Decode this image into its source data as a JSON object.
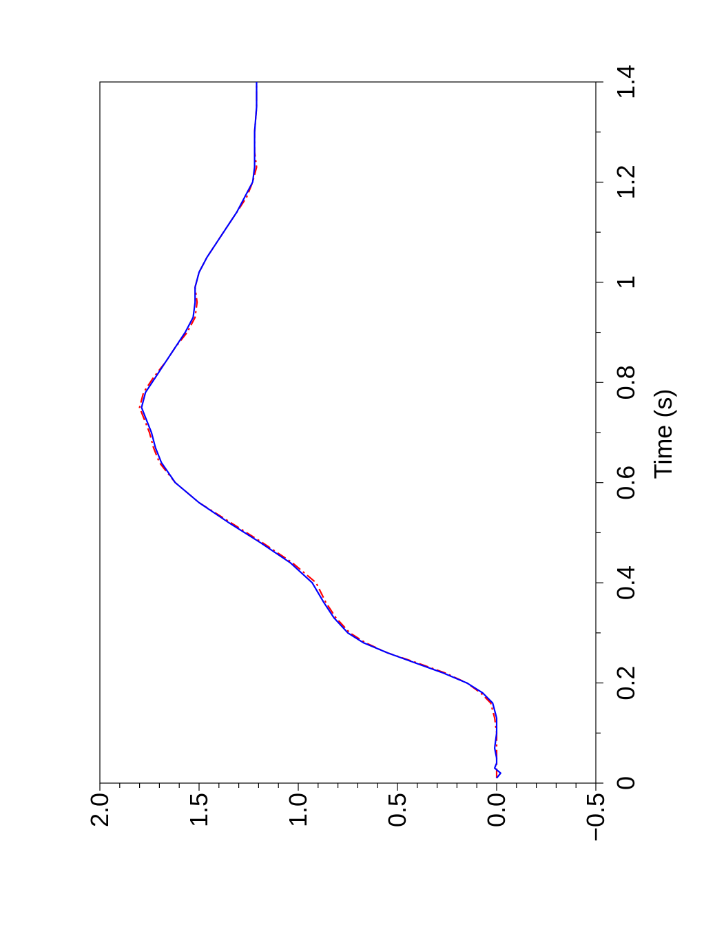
{
  "chart_data": {
    "type": "line",
    "orientation": "rotated-90-ccw",
    "title": "",
    "xlabel": "Time (s)",
    "ylabel": "",
    "xlim": [
      0,
      1.4
    ],
    "ylim": [
      -0.5,
      2.0
    ],
    "x_ticks": [
      0,
      0.2,
      0.4,
      0.6,
      0.8,
      1,
      1.2,
      1.4
    ],
    "x_tick_labels": [
      "0",
      "0.2",
      "0.4",
      "0.6",
      "0.8",
      "1",
      "1.2",
      "1.4"
    ],
    "y_ticks": [
      -0.5,
      0,
      0.5,
      1,
      1.5,
      2
    ],
    "y_tick_labels": [
      "−0.5",
      "0.0",
      "0.5",
      "1.0",
      "1.5",
      "2.0"
    ],
    "grid": false,
    "legend": "none",
    "series": [
      {
        "color": "#ff0000",
        "style": "dashed",
        "x": [
          0.01,
          0.05,
          0.1,
          0.13,
          0.16,
          0.18,
          0.2,
          0.22,
          0.24,
          0.26,
          0.28,
          0.3,
          0.33,
          0.36,
          0.4,
          0.44,
          0.48,
          0.52,
          0.56,
          0.6,
          0.64,
          0.67,
          0.7,
          0.73,
          0.75,
          0.78,
          0.81,
          0.84,
          0.87,
          0.9,
          0.93,
          0.96,
          0.99,
          1.02,
          1.05,
          1.08,
          1.11,
          1.14,
          1.17,
          1.2,
          1.23,
          1.26,
          1.3,
          1.35,
          1.4
        ],
        "y": [
          0.0,
          0.0,
          0.0,
          0.01,
          0.03,
          0.08,
          0.15,
          0.26,
          0.4,
          0.55,
          0.66,
          0.74,
          0.81,
          0.86,
          0.91,
          1.03,
          1.18,
          1.34,
          1.5,
          1.62,
          1.7,
          1.73,
          1.75,
          1.78,
          1.8,
          1.78,
          1.73,
          1.67,
          1.62,
          1.56,
          1.52,
          1.51,
          1.52,
          1.5,
          1.46,
          1.41,
          1.36,
          1.31,
          1.26,
          1.23,
          1.21,
          1.22,
          1.22,
          1.21,
          1.21
        ]
      },
      {
        "color": "#0000ff",
        "style": "solid",
        "x": [
          0.01,
          0.02,
          0.03,
          0.04,
          0.05,
          0.07,
          0.1,
          0.13,
          0.16,
          0.18,
          0.2,
          0.22,
          0.24,
          0.26,
          0.28,
          0.3,
          0.33,
          0.36,
          0.4,
          0.44,
          0.48,
          0.52,
          0.56,
          0.6,
          0.64,
          0.67,
          0.7,
          0.73,
          0.75,
          0.78,
          0.81,
          0.84,
          0.87,
          0.9,
          0.93,
          0.96,
          0.99,
          1.02,
          1.05,
          1.08,
          1.11,
          1.14,
          1.17,
          1.2,
          1.23,
          1.26,
          1.3,
          1.35,
          1.4
        ],
        "y": [
          0.0,
          -0.02,
          0.01,
          0.0,
          0.0,
          0.01,
          0.0,
          0.0,
          0.02,
          0.07,
          0.15,
          0.27,
          0.41,
          0.55,
          0.67,
          0.75,
          0.82,
          0.87,
          0.93,
          1.04,
          1.19,
          1.35,
          1.5,
          1.62,
          1.69,
          1.72,
          1.74,
          1.77,
          1.79,
          1.77,
          1.72,
          1.67,
          1.62,
          1.57,
          1.53,
          1.52,
          1.52,
          1.5,
          1.46,
          1.41,
          1.36,
          1.31,
          1.27,
          1.23,
          1.22,
          1.22,
          1.22,
          1.21,
          1.21
        ]
      }
    ]
  }
}
